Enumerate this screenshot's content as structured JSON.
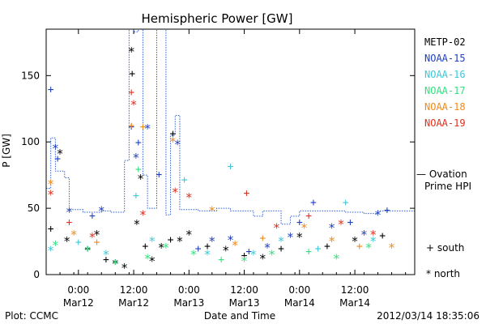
{
  "chart_data": {
    "type": "scatter",
    "title": "Hemispheric Power [GW]",
    "ylabel": "P [GW]",
    "xlabel": "Date and Time",
    "ylim": [
      0,
      185
    ],
    "yticks": [
      0,
      50,
      100,
      150
    ],
    "xlim": [
      "2012-03-11T17:00",
      "2012-03-15T01:00"
    ],
    "xticks": [
      {
        "time": "2012-03-12T00:00",
        "line1": "0:00",
        "line2": "Mar12"
      },
      {
        "time": "2012-03-12T12:00",
        "line1": "12:00",
        "line2": "Mar12"
      },
      {
        "time": "2012-03-13T00:00",
        "line1": "0:00",
        "line2": "Mar13"
      },
      {
        "time": "2012-03-13T12:00",
        "line1": "12:00",
        "line2": "Mar13"
      },
      {
        "time": "2012-03-14T00:00",
        "line1": "0:00",
        "line2": "Mar14"
      },
      {
        "time": "2012-03-14T12:00",
        "line1": "12:00",
        "line2": "Mar14"
      }
    ],
    "grid": false,
    "legend_position": "right",
    "series": [
      {
        "name": "METP-02",
        "color": "#000000",
        "points": [
          {
            "t": "2012-03-11T18:00",
            "v": 35,
            "m": "+"
          },
          {
            "t": "2012-03-11T20:00",
            "v": 91,
            "m": "*"
          },
          {
            "t": "2012-03-11T21:30",
            "v": 25,
            "m": "*"
          },
          {
            "t": "2012-03-12T02:00",
            "v": 20,
            "m": "+"
          },
          {
            "t": "2012-03-12T04:00",
            "v": 30,
            "m": "*"
          },
          {
            "t": "2012-03-12T06:00",
            "v": 12,
            "m": "+"
          },
          {
            "t": "2012-03-12T08:00",
            "v": 8,
            "m": "*"
          },
          {
            "t": "2012-03-12T10:00",
            "v": 5,
            "m": "*"
          },
          {
            "t": "2012-03-12T11:30",
            "v": 168,
            "m": "*"
          },
          {
            "t": "2012-03-12T11:40",
            "v": 152,
            "m": "+"
          },
          {
            "t": "2012-03-12T12:40",
            "v": 38,
            "m": "*"
          },
          {
            "t": "2012-03-12T13:30",
            "v": 72,
            "m": "*"
          },
          {
            "t": "2012-03-12T14:30",
            "v": 22,
            "m": "+"
          },
          {
            "t": "2012-03-12T16:00",
            "v": 10,
            "m": "*"
          },
          {
            "t": "2012-03-12T18:00",
            "v": 20,
            "m": "*"
          },
          {
            "t": "2012-03-12T20:00",
            "v": 27,
            "m": "+"
          },
          {
            "t": "2012-03-12T20:30",
            "v": 107,
            "m": "+"
          },
          {
            "t": "2012-03-12T22:00",
            "v": 25,
            "m": "*"
          },
          {
            "t": "2012-03-13T00:00",
            "v": 30,
            "m": "*"
          },
          {
            "t": "2012-03-13T04:00",
            "v": 22,
            "m": "+"
          },
          {
            "t": "2012-03-13T08:00",
            "v": 18,
            "m": "*"
          },
          {
            "t": "2012-03-13T12:00",
            "v": 15,
            "m": "+"
          },
          {
            "t": "2012-03-13T16:00",
            "v": 12,
            "m": "*"
          },
          {
            "t": "2012-03-13T20:00",
            "v": 20,
            "m": "+"
          },
          {
            "t": "2012-03-14T00:00",
            "v": 28,
            "m": "*"
          },
          {
            "t": "2012-03-14T06:00",
            "v": 22,
            "m": "+"
          },
          {
            "t": "2012-03-14T12:00",
            "v": 25,
            "m": "*"
          },
          {
            "t": "2012-03-14T18:00",
            "v": 30,
            "m": "+"
          }
        ]
      },
      {
        "name": "NOAA-15",
        "color": "#1f3fbf",
        "points": [
          {
            "t": "2012-03-11T18:00",
            "v": 140,
            "m": "+"
          },
          {
            "t": "2012-03-11T19:00",
            "v": 95,
            "m": "*"
          },
          {
            "t": "2012-03-11T19:30",
            "v": 88,
            "m": "+"
          },
          {
            "t": "2012-03-11T22:00",
            "v": 47,
            "m": "*"
          },
          {
            "t": "2012-03-12T03:00",
            "v": 45,
            "m": "+"
          },
          {
            "t": "2012-03-12T05:00",
            "v": 48,
            "m": "*"
          },
          {
            "t": "2012-03-12T11:30",
            "v": 112,
            "m": "+"
          },
          {
            "t": "2012-03-12T12:30",
            "v": 88,
            "m": "*"
          },
          {
            "t": "2012-03-12T13:00",
            "v": 100,
            "m": "+"
          },
          {
            "t": "2012-03-12T15:00",
            "v": 110,
            "m": "*"
          },
          {
            "t": "2012-03-12T17:30",
            "v": 76,
            "m": "+"
          },
          {
            "t": "2012-03-12T21:30",
            "v": 98,
            "m": "*"
          },
          {
            "t": "2012-03-13T02:00",
            "v": 20,
            "m": "+"
          },
          {
            "t": "2012-03-13T05:00",
            "v": 25,
            "m": "*"
          },
          {
            "t": "2012-03-13T09:00",
            "v": 26,
            "m": "*"
          },
          {
            "t": "2012-03-13T13:00",
            "v": 18,
            "m": "+"
          },
          {
            "t": "2012-03-13T17:00",
            "v": 20,
            "m": "*"
          },
          {
            "t": "2012-03-13T22:00",
            "v": 28,
            "m": "*"
          },
          {
            "t": "2012-03-14T00:00",
            "v": 40,
            "m": "+"
          },
          {
            "t": "2012-03-14T03:00",
            "v": 55,
            "m": "+"
          },
          {
            "t": "2012-03-14T07:00",
            "v": 35,
            "m": "*"
          },
          {
            "t": "2012-03-14T11:00",
            "v": 40,
            "m": "+"
          },
          {
            "t": "2012-03-14T14:00",
            "v": 30,
            "m": "*"
          },
          {
            "t": "2012-03-14T17:00",
            "v": 45,
            "m": "*"
          },
          {
            "t": "2012-03-14T19:00",
            "v": 49,
            "m": "+"
          }
        ]
      },
      {
        "name": "NOAA-16",
        "color": "#3fc7d8",
        "points": [
          {
            "t": "2012-03-11T18:00",
            "v": 18,
            "m": "*"
          },
          {
            "t": "2012-03-12T00:00",
            "v": 25,
            "m": "+"
          },
          {
            "t": "2012-03-12T06:00",
            "v": 15,
            "m": "*"
          },
          {
            "t": "2012-03-12T12:30",
            "v": 60,
            "m": "+"
          },
          {
            "t": "2012-03-12T16:00",
            "v": 25,
            "m": "*"
          },
          {
            "t": "2012-03-12T23:00",
            "v": 72,
            "m": "+"
          },
          {
            "t": "2012-03-13T04:00",
            "v": 15,
            "m": "*"
          },
          {
            "t": "2012-03-13T09:00",
            "v": 82,
            "m": "+"
          },
          {
            "t": "2012-03-13T14:00",
            "v": 15,
            "m": "*"
          },
          {
            "t": "2012-03-13T20:00",
            "v": 25,
            "m": "*"
          },
          {
            "t": "2012-03-14T04:00",
            "v": 20,
            "m": "+"
          },
          {
            "t": "2012-03-14T10:00",
            "v": 55,
            "m": "+"
          },
          {
            "t": "2012-03-14T16:00",
            "v": 25,
            "m": "*"
          }
        ]
      },
      {
        "name": "NOAA-17",
        "color": "#33e07f",
        "points": [
          {
            "t": "2012-03-11T19:00",
            "v": 22,
            "m": "*"
          },
          {
            "t": "2012-03-12T02:00",
            "v": 18,
            "m": "*"
          },
          {
            "t": "2012-03-12T08:00",
            "v": 10,
            "m": "+"
          },
          {
            "t": "2012-03-12T13:00",
            "v": 80,
            "m": "+"
          },
          {
            "t": "2012-03-12T15:00",
            "v": 12,
            "m": "*"
          },
          {
            "t": "2012-03-12T19:00",
            "v": 20,
            "m": "*"
          },
          {
            "t": "2012-03-13T01:00",
            "v": 15,
            "m": "*"
          },
          {
            "t": "2012-03-13T07:00",
            "v": 12,
            "m": "+"
          },
          {
            "t": "2012-03-13T12:00",
            "v": 10,
            "m": "*"
          },
          {
            "t": "2012-03-13T18:00",
            "v": 15,
            "m": "*"
          },
          {
            "t": "2012-03-14T02:00",
            "v": 18,
            "m": "+"
          },
          {
            "t": "2012-03-14T08:00",
            "v": 12,
            "m": "*"
          },
          {
            "t": "2012-03-14T15:00",
            "v": 20,
            "m": "*"
          }
        ]
      },
      {
        "name": "NOAA-18",
        "color": "#f08a1a",
        "points": [
          {
            "t": "2012-03-11T18:00",
            "v": 68,
            "m": "*"
          },
          {
            "t": "2012-03-11T23:00",
            "v": 30,
            "m": "*"
          },
          {
            "t": "2012-03-12T04:00",
            "v": 25,
            "m": "+"
          },
          {
            "t": "2012-03-12T11:30",
            "v": 113,
            "m": "+"
          },
          {
            "t": "2012-03-12T14:00",
            "v": 112,
            "m": "+"
          },
          {
            "t": "2012-03-12T20:30",
            "v": 100,
            "m": "*"
          },
          {
            "t": "2012-03-13T05:00",
            "v": 48,
            "m": "*"
          },
          {
            "t": "2012-03-13T10:00",
            "v": 22,
            "m": "*"
          },
          {
            "t": "2012-03-13T16:00",
            "v": 28,
            "m": "+"
          },
          {
            "t": "2012-03-14T01:00",
            "v": 35,
            "m": "*"
          },
          {
            "t": "2012-03-14T07:00",
            "v": 25,
            "m": "*"
          },
          {
            "t": "2012-03-14T13:00",
            "v": 22,
            "m": "+"
          },
          {
            "t": "2012-03-14T20:00",
            "v": 20,
            "m": "*"
          }
        ]
      },
      {
        "name": "NOAA-19",
        "color": "#e0301f",
        "points": [
          {
            "t": "2012-03-11T18:00",
            "v": 60,
            "m": "*"
          },
          {
            "t": "2012-03-11T22:00",
            "v": 40,
            "m": "+"
          },
          {
            "t": "2012-03-12T03:00",
            "v": 28,
            "m": "*"
          },
          {
            "t": "2012-03-12T11:30",
            "v": 138,
            "m": "+"
          },
          {
            "t": "2012-03-12T12:00",
            "v": 128,
            "m": "*"
          },
          {
            "t": "2012-03-12T14:00",
            "v": 45,
            "m": "*"
          },
          {
            "t": "2012-03-12T21:00",
            "v": 62,
            "m": "*"
          },
          {
            "t": "2012-03-13T00:00",
            "v": 58,
            "m": "*"
          },
          {
            "t": "2012-03-13T12:30",
            "v": 62,
            "m": "+"
          },
          {
            "t": "2012-03-13T19:00",
            "v": 35,
            "m": "*"
          },
          {
            "t": "2012-03-14T02:00",
            "v": 45,
            "m": "+"
          },
          {
            "t": "2012-03-14T09:00",
            "v": 38,
            "m": "*"
          },
          {
            "t": "2012-03-14T16:00",
            "v": 30,
            "m": "*"
          }
        ]
      }
    ],
    "hpi": {
      "label_line1": "— Ovation",
      "label_line2": "Prime HPI",
      "color": "#2b5fd6",
      "steps": [
        {
          "t": "2012-03-11T17:00",
          "v": 65
        },
        {
          "t": "2012-03-11T18:00",
          "v": 103
        },
        {
          "t": "2012-03-11T19:00",
          "v": 78
        },
        {
          "t": "2012-03-11T21:00",
          "v": 73
        },
        {
          "t": "2012-03-11T22:00",
          "v": 49
        },
        {
          "t": "2012-03-12T01:00",
          "v": 47
        },
        {
          "t": "2012-03-12T05:00",
          "v": 48
        },
        {
          "t": "2012-03-12T07:00",
          "v": 47
        },
        {
          "t": "2012-03-12T10:00",
          "v": 86
        },
        {
          "t": "2012-03-12T11:00",
          "v": 185
        },
        {
          "t": "2012-03-12T12:00",
          "v": 183
        },
        {
          "t": "2012-03-12T13:00",
          "v": 185
        },
        {
          "t": "2012-03-12T14:00",
          "v": 75
        },
        {
          "t": "2012-03-12T15:00",
          "v": 50
        },
        {
          "t": "2012-03-12T17:00",
          "v": 185
        },
        {
          "t": "2012-03-12T19:00",
          "v": 45
        },
        {
          "t": "2012-03-12T20:00",
          "v": 105
        },
        {
          "t": "2012-03-12T21:00",
          "v": 120
        },
        {
          "t": "2012-03-12T22:00",
          "v": 49
        },
        {
          "t": "2012-03-13T02:00",
          "v": 48
        },
        {
          "t": "2012-03-13T06:00",
          "v": 50
        },
        {
          "t": "2012-03-13T09:00",
          "v": 48
        },
        {
          "t": "2012-03-13T14:00",
          "v": 44
        },
        {
          "t": "2012-03-13T16:00",
          "v": 48
        },
        {
          "t": "2012-03-13T20:00",
          "v": 38
        },
        {
          "t": "2012-03-13T22:00",
          "v": 44
        },
        {
          "t": "2012-03-14T00:00",
          "v": 48
        },
        {
          "t": "2012-03-14T10:00",
          "v": 47
        },
        {
          "t": "2012-03-14T14:00",
          "v": 46
        },
        {
          "t": "2012-03-14T17:00",
          "v": 48
        },
        {
          "t": "2012-03-15T01:00",
          "v": 48
        }
      ]
    },
    "markers_legend": [
      {
        "symbol": "+",
        "label": "south"
      },
      {
        "symbol": "*",
        "label": "north"
      }
    ]
  },
  "footer": {
    "plot_credit": "Plot: CCMC",
    "timestamp": "2012/03/14 18:35:06"
  }
}
